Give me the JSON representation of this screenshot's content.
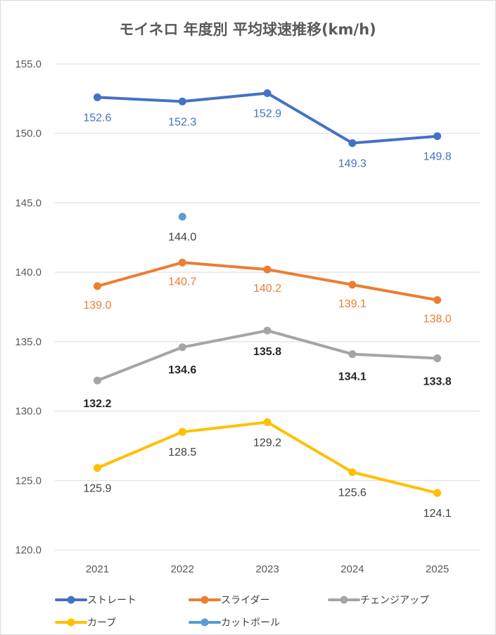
{
  "chart_data": {
    "type": "line",
    "title": "モイネロ 年度別 平均球速推移(km/h)",
    "xlabel": "",
    "ylabel": "",
    "categories": [
      "2021",
      "2022",
      "2023",
      "2024",
      "2025"
    ],
    "ylim": [
      120,
      155
    ],
    "yticks": [
      "120.0",
      "125.0",
      "130.0",
      "135.0",
      "140.0",
      "145.0",
      "150.0",
      "155.0"
    ],
    "grid": true,
    "legend_position": "bottom",
    "series": [
      {
        "name": "ストレート",
        "color": "#4472c4",
        "label_color": "#4472c4",
        "label_bold": false,
        "label_pos": "below",
        "values": [
          152.6,
          152.3,
          152.9,
          149.3,
          149.8
        ],
        "labels": [
          "152.6",
          "152.3",
          "152.9",
          "149.3",
          "149.8"
        ]
      },
      {
        "name": "スライダー",
        "color": "#ed7d31",
        "label_color": "#ed7d31",
        "label_bold": false,
        "label_pos": "below",
        "values": [
          139.0,
          140.7,
          140.2,
          139.1,
          138.0
        ],
        "labels": [
          "139.0",
          "140.7",
          "140.2",
          "139.1",
          "138.0"
        ]
      },
      {
        "name": "チェンジアップ",
        "color": "#a5a5a5",
        "label_color": "#262626",
        "label_bold": true,
        "label_pos": "mixed",
        "values": [
          132.2,
          134.6,
          135.8,
          134.1,
          133.8
        ],
        "labels": [
          "132.2",
          "134.6",
          "135.8",
          "134.1",
          "133.8"
        ]
      },
      {
        "name": "カーブ",
        "color": "#ffc000",
        "label_color": "#404040",
        "label_bold": false,
        "label_pos": "below",
        "values": [
          125.9,
          128.5,
          129.2,
          125.6,
          124.1
        ],
        "labels": [
          "125.9",
          "128.5",
          "129.2",
          "125.6",
          "124.1"
        ]
      },
      {
        "name": "カットボール",
        "color": "#5b9bd5",
        "label_color": "#404040",
        "label_bold": false,
        "label_pos": "below",
        "values": [
          null,
          144.0,
          null,
          null,
          null
        ],
        "labels": [
          "",
          "144.0",
          "",
          "",
          ""
        ]
      }
    ]
  }
}
